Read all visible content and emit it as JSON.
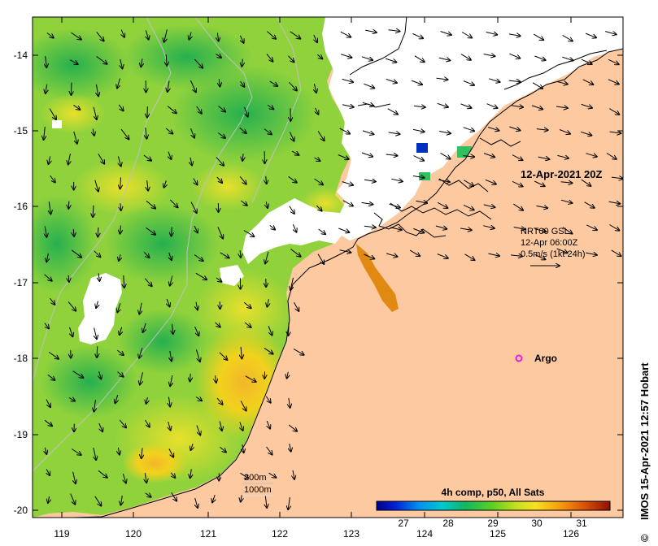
{
  "map": {
    "date_label": "12-Apr-2021 20Z",
    "current_source": "NRT00 GSL",
    "current_time": "12-Apr 06:00Z",
    "current_scale": "0.5m/s (1kt 24h)",
    "argo_label": "Argo",
    "legend_title": "4h comp, p50, All Sats",
    "legend_ticks": [
      "27",
      "28",
      "29",
      "30",
      "31"
    ],
    "isobath_labels": [
      "200m",
      "1000m"
    ],
    "credit": "IMOS 15-Apr-2021 12:57 Hobart",
    "copyright_symbol": "©",
    "x_axis_ticks": [
      "119",
      "120",
      "121",
      "122",
      "123",
      "124",
      "125",
      "126"
    ],
    "y_axis_ticks": [
      "-14",
      "-15",
      "-16",
      "-17",
      "-18",
      "-19",
      "-20"
    ],
    "colors": {
      "land": "#fdc9a0",
      "cloud": "#ffffff",
      "sst_warm": "#f2d21c",
      "sst_mid": "#8fd23c",
      "sst_cool": "#2cb85a",
      "argo": "#e020e0"
    }
  }
}
